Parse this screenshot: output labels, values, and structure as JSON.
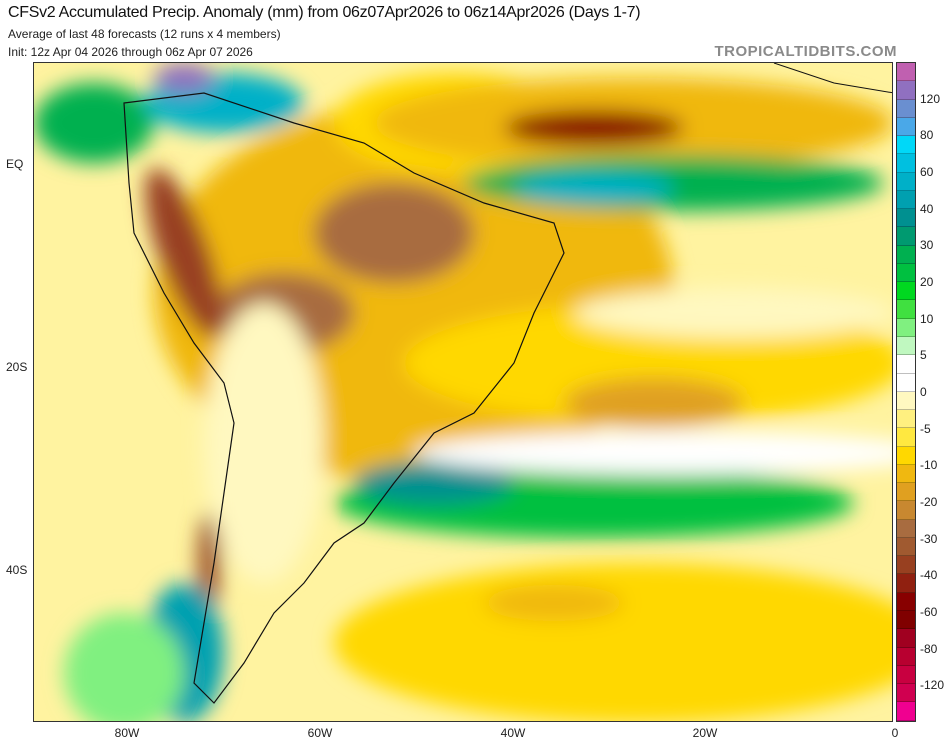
{
  "header": {
    "title": "CFSv2 Accumulated Precip. Anomaly (mm) from 06z07Apr2026 to 06z14Apr2026 (Days 1-7)",
    "subtitle": "Average of last 48 forecasts (12 runs x 4 members)",
    "init": "Init: 12z Apr 04 2026 through 06z Apr 07 2026",
    "brand": "TROPICALTIDBITS.COM"
  },
  "axes": {
    "x_labels": [
      "80W",
      "60W",
      "40W",
      "20W",
      "0"
    ],
    "y_labels": [
      "EQ",
      "20S",
      "40S"
    ]
  },
  "colorbar": {
    "labels": [
      "120",
      "80",
      "60",
      "40",
      "30",
      "20",
      "10",
      "5",
      "0",
      "-5",
      "-10",
      "-20",
      "-30",
      "-40",
      "-60",
      "-80",
      "-120"
    ],
    "colors": [
      "#c060b0",
      "#9070c0",
      "#6a8fd0",
      "#4aa8e8",
      "#00d8f8",
      "#00c0e0",
      "#00b0c8",
      "#00a0b0",
      "#009090",
      "#009a70",
      "#00b050",
      "#00c040",
      "#00d820",
      "#40e040",
      "#80f080",
      "#c0f8c0",
      "#ffffff",
      "#ffffff",
      "#fff8c0",
      "#fff080",
      "#ffe840",
      "#ffd800",
      "#f0b810",
      "#e0a020",
      "#c88830",
      "#a86c40",
      "#a05a30",
      "#984020",
      "#902010",
      "#880000",
      "#800000",
      "#a00020",
      "#b80030",
      "#c80040",
      "#d00050",
      "#f00090"
    ]
  }
}
